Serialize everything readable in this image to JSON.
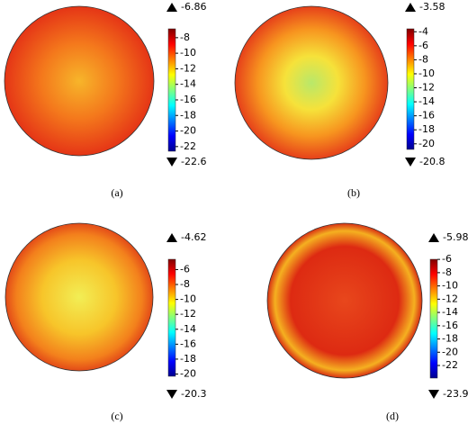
{
  "chart_data": [
    {
      "type": "colormap",
      "caption": "(a)",
      "ylim": [
        -22.6,
        -6.86
      ],
      "yticks": [
        -22,
        -20,
        -18,
        -16,
        -14,
        -12,
        -10,
        -8
      ]
    },
    {
      "type": "colormap",
      "caption": "(b)",
      "ylim": [
        -20.8,
        -3.58
      ],
      "yticks": [
        -20,
        -18,
        -16,
        -14,
        -12,
        -10,
        -8,
        -6,
        -4
      ]
    },
    {
      "type": "colormap",
      "caption": "(c)",
      "ylim": [
        -20.3,
        -4.62
      ],
      "yticks": [
        -20,
        -18,
        -16,
        -14,
        -12,
        -10,
        -8,
        -6
      ]
    },
    {
      "type": "colormap",
      "caption": "(d)",
      "ylim": [
        -23.9,
        -5.98
      ],
      "yticks": [
        -22,
        -20,
        -18,
        -16,
        -14,
        -12,
        -10,
        -8,
        -6
      ]
    }
  ]
}
